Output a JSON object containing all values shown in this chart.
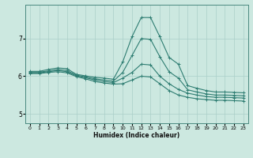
{
  "xlabel": "Humidex (Indice chaleur)",
  "background_color": "#cce8e0",
  "line_color": "#2e7d72",
  "grid_color": "#aacfc8",
  "xlim": [
    -0.5,
    23.5
  ],
  "ylim": [
    4.75,
    7.9
  ],
  "yticks": [
    5,
    6,
    7
  ],
  "xticks": [
    0,
    1,
    2,
    3,
    4,
    5,
    6,
    7,
    8,
    9,
    10,
    11,
    12,
    13,
    14,
    15,
    16,
    17,
    18,
    19,
    20,
    21,
    22,
    23
  ],
  "series": [
    [
      6.13,
      6.13,
      6.18,
      6.22,
      6.2,
      6.05,
      6.01,
      5.97,
      5.95,
      5.92,
      6.38,
      7.05,
      7.56,
      7.56,
      7.05,
      6.5,
      6.32,
      5.75,
      5.68,
      5.62,
      5.58,
      5.58,
      5.57,
      5.56
    ],
    [
      6.11,
      6.11,
      6.14,
      6.18,
      6.15,
      6.03,
      5.98,
      5.93,
      5.9,
      5.87,
      6.1,
      6.55,
      7.0,
      6.98,
      6.52,
      6.12,
      5.95,
      5.64,
      5.58,
      5.53,
      5.5,
      5.5,
      5.49,
      5.48
    ],
    [
      6.09,
      6.09,
      6.12,
      6.15,
      6.12,
      6.01,
      5.96,
      5.9,
      5.86,
      5.83,
      5.95,
      6.1,
      6.32,
      6.3,
      6.0,
      5.8,
      5.65,
      5.55,
      5.5,
      5.46,
      5.44,
      5.44,
      5.43,
      5.42
    ],
    [
      6.07,
      6.07,
      6.1,
      6.12,
      6.09,
      5.99,
      5.93,
      5.86,
      5.82,
      5.79,
      5.8,
      5.9,
      6.0,
      5.98,
      5.8,
      5.62,
      5.5,
      5.44,
      5.4,
      5.38,
      5.36,
      5.36,
      5.35,
      5.34
    ]
  ]
}
